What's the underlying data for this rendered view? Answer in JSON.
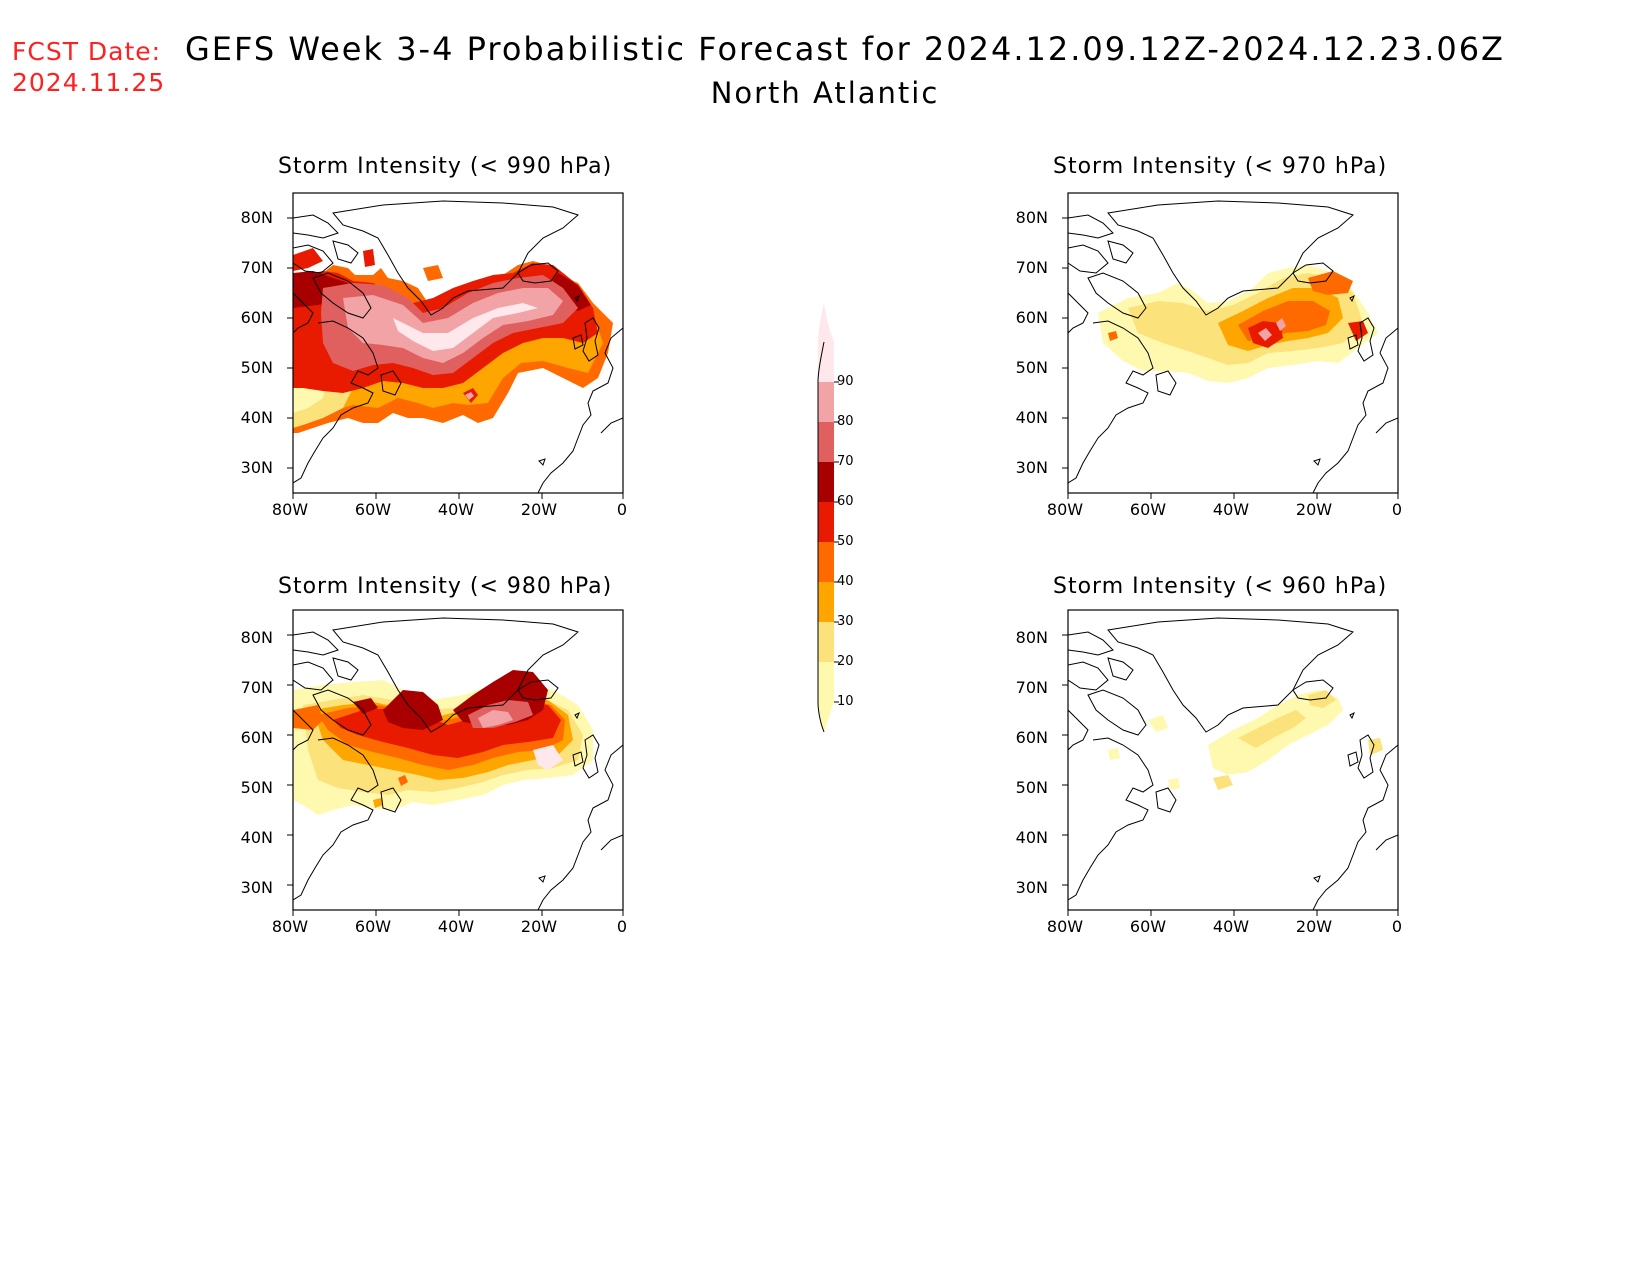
{
  "header": {
    "fcst_label": "FCST Date:",
    "fcst_date": "2024.11.25",
    "title": "GEFS Week 3-4 Probabilistic Forecast for 2024.12.09.12Z-2024.12.23.06Z",
    "subtitle": "North Atlantic"
  },
  "panels": [
    {
      "id": "p990",
      "title": "Storm Intensity (< 990 hPa)"
    },
    {
      "id": "p970",
      "title": "Storm Intensity (< 970 hPa)"
    },
    {
      "id": "p980",
      "title": "Storm Intensity (< 980 hPa)"
    },
    {
      "id": "p960",
      "title": "Storm Intensity (< 960 hPa)"
    }
  ],
  "axes": {
    "lat_labels": [
      "80N",
      "70N",
      "60N",
      "50N",
      "40N",
      "30N"
    ],
    "lon_labels": [
      "80W",
      "60W",
      "40W",
      "20W",
      "0"
    ]
  },
  "colorbar": {
    "levels": [
      "10",
      "20",
      "30",
      "40",
      "50",
      "60",
      "70",
      "80",
      "90"
    ],
    "colors": [
      "#fff9b0",
      "#fce27a",
      "#ffa500",
      "#ff6a00",
      "#e81a00",
      "#a80000",
      "#e06060",
      "#f2a3a6",
      "#ffe8ec"
    ]
  }
}
